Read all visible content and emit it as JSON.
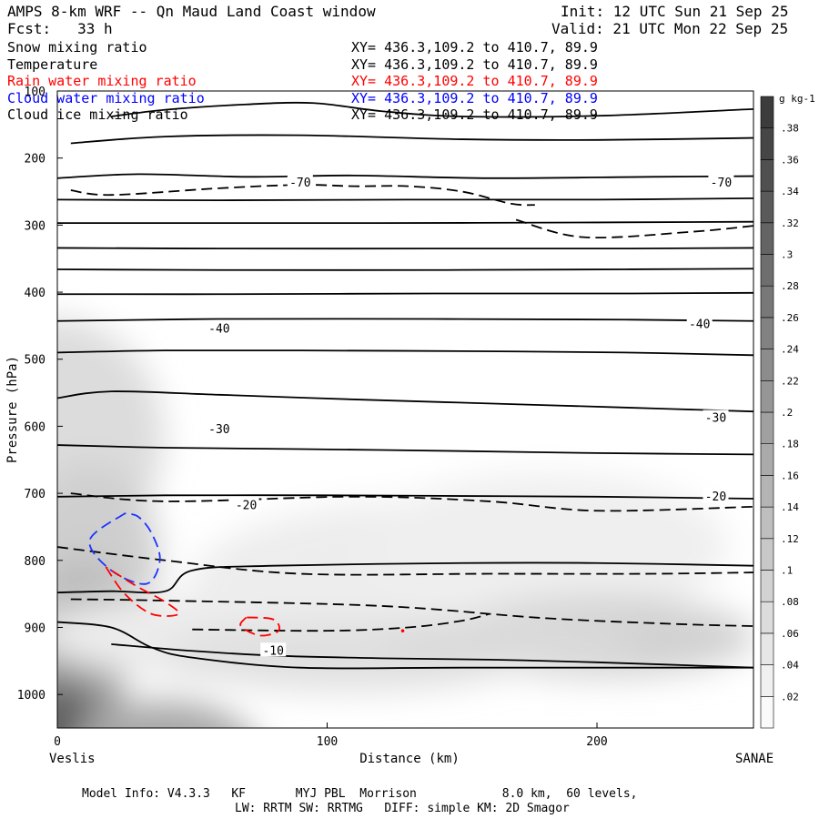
{
  "header": {
    "title": "AMPS 8-km WRF -- Qn Maud Land Coast window",
    "init": "Init: 12 UTC Sun 21 Sep 25",
    "forecast": "Fcst:   33 h",
    "valid": "Valid: 21 UTC Mon 22 Sep 25"
  },
  "fields": [
    {
      "name": "Snow mixing ratio",
      "xy": "XY= 436.3,109.2 to 410.7, 89.9",
      "color": "#000000"
    },
    {
      "name": "Temperature",
      "xy": "XY= 436.3,109.2 to 410.7, 89.9",
      "color": "#000000"
    },
    {
      "name": "Rain water mixing ratio",
      "xy": "XY= 436.3,109.2 to 410.7, 89.9",
      "color": "#ff0000"
    },
    {
      "name": "Cloud water mixing ratio",
      "xy": "XY= 436.3,109.2 to 410.7, 89.9",
      "color": "#0000ff"
    },
    {
      "name": "Cloud ice mixing ratio",
      "xy": "XY= 436.3,109.2 to 410.7, 89.9",
      "color": "#000000"
    }
  ],
  "chart_data": {
    "type": "cross-section",
    "title": "AMPS 8-km WRF -- Qn Maud Land Coast window",
    "xlabel": "Distance (km)",
    "ylabel": "Pressure (hPa)",
    "xlim": [
      0,
      258
    ],
    "ylim": [
      1050,
      100
    ],
    "x_ticks": [
      0,
      100,
      200
    ],
    "y_ticks": [
      100,
      200,
      300,
      400,
      500,
      600,
      700,
      800,
      900,
      1000
    ],
    "left_endpoint": "Veslis",
    "right_endpoint": "SANAE",
    "temperature_labels": [
      {
        "text": "-70",
        "x": 90,
        "p": 237
      },
      {
        "text": "-70",
        "x": 246,
        "p": 237
      },
      {
        "text": "-40",
        "x": 60,
        "p": 455
      },
      {
        "text": "-40",
        "x": 238,
        "p": 448
      },
      {
        "text": "-30",
        "x": 60,
        "p": 605
      },
      {
        "text": "-30",
        "x": 244,
        "p": 588
      },
      {
        "text": "-20",
        "x": 70,
        "p": 718
      },
      {
        "text": "-20",
        "x": 244,
        "p": 705
      },
      {
        "text": "-10",
        "x": 80,
        "p": 935
      }
    ],
    "temperature_contours": [
      [
        [
          20,
          138
        ],
        [
          40,
          128
        ],
        [
          70,
          120
        ],
        [
          95,
          118
        ],
        [
          120,
          130
        ],
        [
          150,
          138
        ],
        [
          200,
          137
        ],
        [
          258,
          127
        ]
      ],
      [
        [
          5,
          178
        ],
        [
          40,
          168
        ],
        [
          90,
          166
        ],
        [
          150,
          172
        ],
        [
          200,
          173
        ],
        [
          258,
          170
        ]
      ],
      [
        [
          0,
          230
        ],
        [
          30,
          224
        ],
        [
          70,
          228
        ],
        [
          110,
          226
        ],
        [
          160,
          230
        ],
        [
          220,
          228
        ],
        [
          258,
          227
        ]
      ],
      [
        [
          0,
          262
        ],
        [
          60,
          263
        ],
        [
          130,
          262
        ],
        [
          200,
          262
        ],
        [
          258,
          260
        ]
      ],
      [
        [
          0,
          297
        ],
        [
          50,
          297
        ],
        [
          120,
          297
        ],
        [
          200,
          296
        ],
        [
          258,
          295
        ]
      ],
      [
        [
          0,
          334
        ],
        [
          60,
          335
        ],
        [
          140,
          335
        ],
        [
          210,
          335
        ],
        [
          258,
          334
        ]
      ],
      [
        [
          0,
          366
        ],
        [
          60,
          367
        ],
        [
          140,
          367
        ],
        [
          210,
          366
        ],
        [
          258,
          365
        ]
      ],
      [
        [
          0,
          403
        ],
        [
          60,
          403
        ],
        [
          140,
          402
        ],
        [
          210,
          402
        ],
        [
          258,
          401
        ]
      ],
      [
        [
          0,
          443
        ],
        [
          60,
          440
        ],
        [
          140,
          440
        ],
        [
          210,
          441
        ],
        [
          258,
          443
        ]
      ],
      [
        [
          0,
          490
        ],
        [
          40,
          487
        ],
        [
          90,
          487
        ],
        [
          150,
          488
        ],
        [
          210,
          490
        ],
        [
          258,
          494
        ]
      ],
      [
        [
          0,
          558
        ],
        [
          20,
          548
        ],
        [
          60,
          553
        ],
        [
          110,
          560
        ],
        [
          160,
          566
        ],
        [
          210,
          572
        ],
        [
          258,
          578
        ]
      ],
      [
        [
          0,
          628
        ],
        [
          40,
          632
        ],
        [
          90,
          634
        ],
        [
          150,
          637
        ],
        [
          200,
          640
        ],
        [
          258,
          642
        ]
      ],
      [
        [
          0,
          705
        ],
        [
          40,
          703
        ],
        [
          100,
          703
        ],
        [
          150,
          704
        ],
        [
          200,
          705
        ],
        [
          258,
          708
        ]
      ],
      [
        [
          0,
          848
        ],
        [
          20,
          846
        ],
        [
          40,
          846
        ],
        [
          50,
          815
        ],
        [
          80,
          808
        ],
        [
          150,
          804
        ],
        [
          200,
          804
        ],
        [
          258,
          808
        ]
      ],
      [
        [
          20,
          925
        ],
        [
          50,
          935
        ],
        [
          80,
          942
        ],
        [
          120,
          946
        ],
        [
          160,
          948
        ],
        [
          200,
          952
        ],
        [
          258,
          960
        ]
      ],
      [
        [
          0,
          892
        ],
        [
          20,
          900
        ],
        [
          35,
          930
        ],
        [
          50,
          945
        ],
        [
          90,
          960
        ],
        [
          150,
          960
        ],
        [
          258,
          960
        ]
      ]
    ],
    "ice_contours": [
      [
        [
          5,
          248
        ],
        [
          20,
          255
        ],
        [
          60,
          245
        ],
        [
          90,
          240
        ],
        [
          110,
          242
        ],
        [
          130,
          242
        ],
        [
          150,
          250
        ],
        [
          168,
          268
        ],
        [
          177,
          270
        ]
      ],
      [
        [
          170,
          292
        ],
        [
          195,
          318
        ],
        [
          235,
          310
        ],
        [
          258,
          301
        ]
      ],
      [
        [
          5,
          700
        ],
        [
          40,
          712
        ],
        [
          110,
          705
        ],
        [
          160,
          712
        ],
        [
          200,
          726
        ],
        [
          258,
          720
        ]
      ],
      [
        [
          0,
          780
        ],
        [
          40,
          800
        ],
        [
          90,
          820
        ],
        [
          160,
          820
        ],
        [
          220,
          820
        ],
        [
          258,
          818
        ]
      ],
      [
        [
          5,
          858
        ],
        [
          40,
          860
        ],
        [
          120,
          868
        ],
        [
          180,
          886
        ],
        [
          230,
          895
        ],
        [
          258,
          898
        ]
      ],
      [
        [
          50,
          903
        ],
        [
          100,
          905
        ],
        [
          130,
          900
        ],
        [
          150,
          890
        ],
        [
          160,
          880
        ]
      ]
    ],
    "cloud_water_contours": [
      [
        [
          25,
          730
        ],
        [
          12,
          770
        ],
        [
          20,
          815
        ],
        [
          33,
          835
        ],
        [
          38,
          800
        ],
        [
          35,
          760
        ],
        [
          30,
          735
        ],
        [
          25,
          730
        ]
      ]
    ],
    "rain_contours": [
      [
        [
          18,
          810
        ],
        [
          25,
          850
        ],
        [
          35,
          880
        ],
        [
          45,
          880
        ],
        [
          40,
          862
        ],
        [
          30,
          840
        ],
        [
          22,
          820
        ],
        [
          18,
          810
        ]
      ],
      [
        [
          70,
          885
        ],
        [
          68,
          898
        ],
        [
          75,
          912
        ],
        [
          82,
          905
        ],
        [
          80,
          888
        ],
        [
          70,
          885
        ]
      ]
    ],
    "rain_point": {
      "x": 128,
      "p": 905
    },
    "colorbar": {
      "unit": "g kg-1",
      "ticks": [
        ".38",
        ".36",
        ".34",
        ".32",
        ".3",
        ".28",
        ".26",
        ".24",
        ".22",
        ".2",
        ".18",
        ".16",
        ".14",
        ".12",
        ".1",
        ".08",
        ".06",
        ".04",
        ".02"
      ]
    }
  },
  "footer": {
    "line1": "Model Info: V4.3.3   KF       MYJ PBL  Morrison            8.0 km,  60 levels,",
    "line2": "LW: RRTM SW: RRTMG   DIFF: simple KM: 2D Smagor"
  }
}
